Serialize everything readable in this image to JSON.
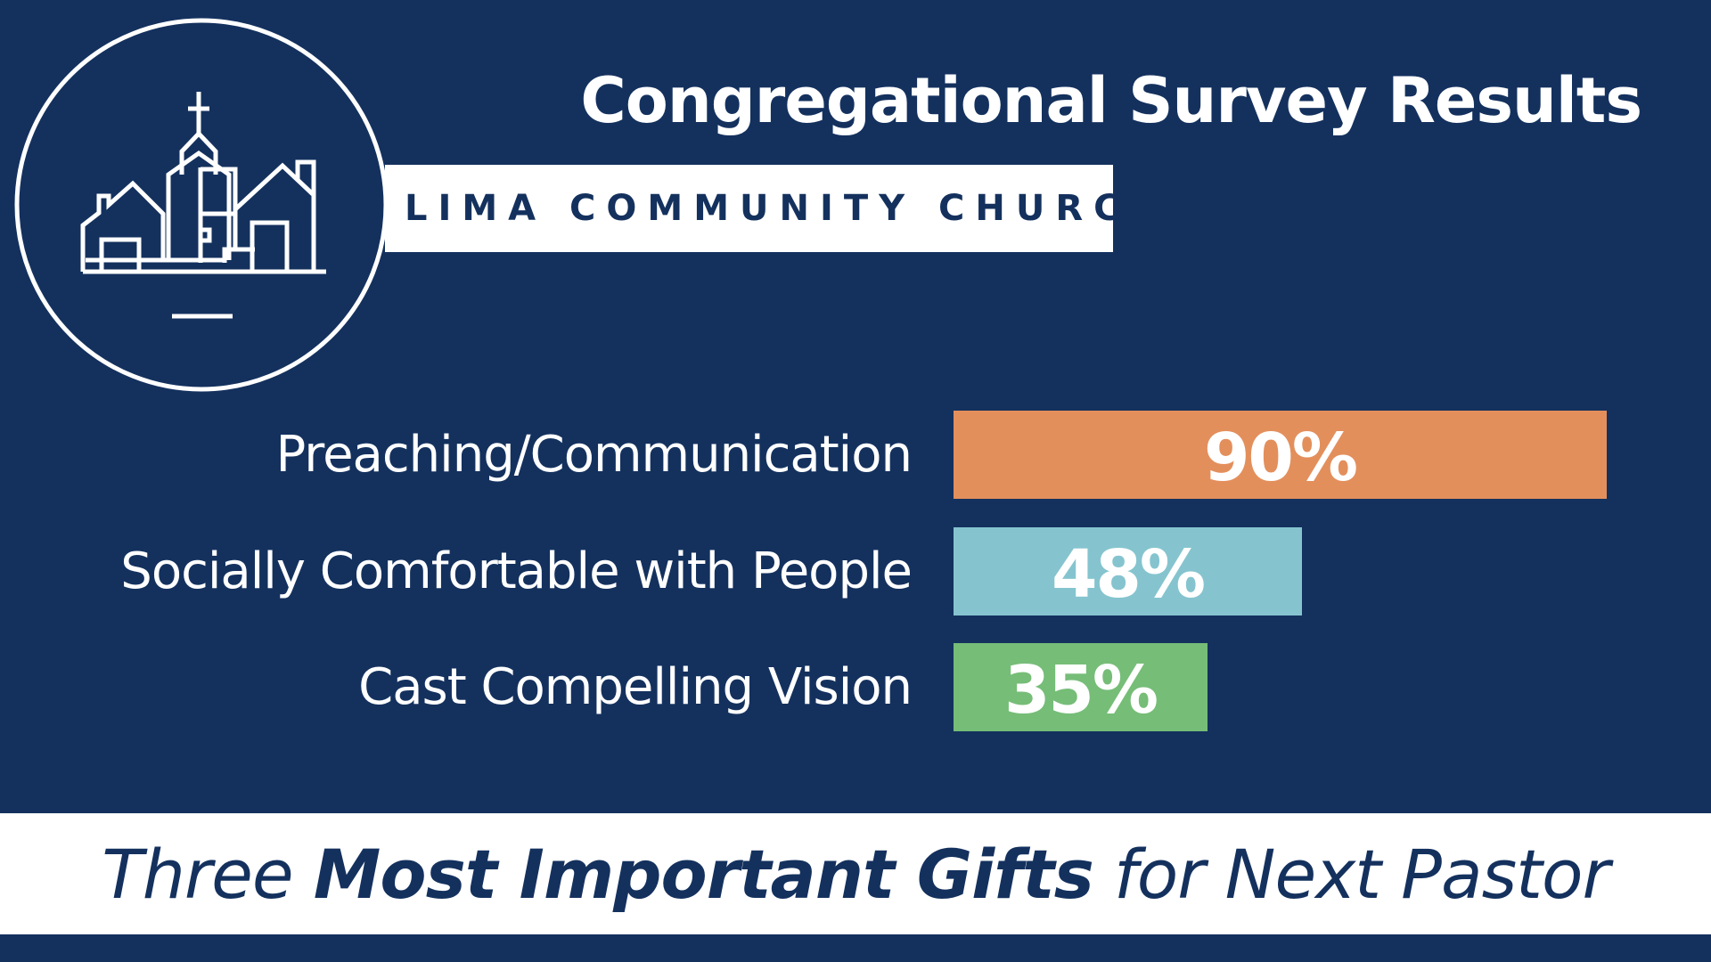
{
  "title": "Congregational Survey Results",
  "church_name": "LIMA COMMUNITY CHURCH",
  "caption": {
    "before": "Three ",
    "bold": "Most Important Gifts",
    "after": " for Next Pastor"
  },
  "logo": {
    "icon": "church-village-icon",
    "color": "#ffffff"
  },
  "colors": {
    "background": "#14315e",
    "text_dark": "#14315e",
    "white": "#ffffff"
  },
  "chart_data": {
    "type": "bar",
    "orientation": "horizontal",
    "title": "",
    "xlabel": "",
    "ylabel": "",
    "xlim": [
      0,
      100
    ],
    "categories": [
      "Preaching/Communication",
      "Socially Comfortable with People",
      "Cast Compelling Vision"
    ],
    "values": [
      90,
      48,
      35
    ],
    "value_labels": [
      "90%",
      "48%",
      "35%"
    ],
    "colors": [
      "#e38f5c",
      "#85c4cf",
      "#76bd78"
    ],
    "unit": "%",
    "grid": false,
    "legend": "none"
  }
}
